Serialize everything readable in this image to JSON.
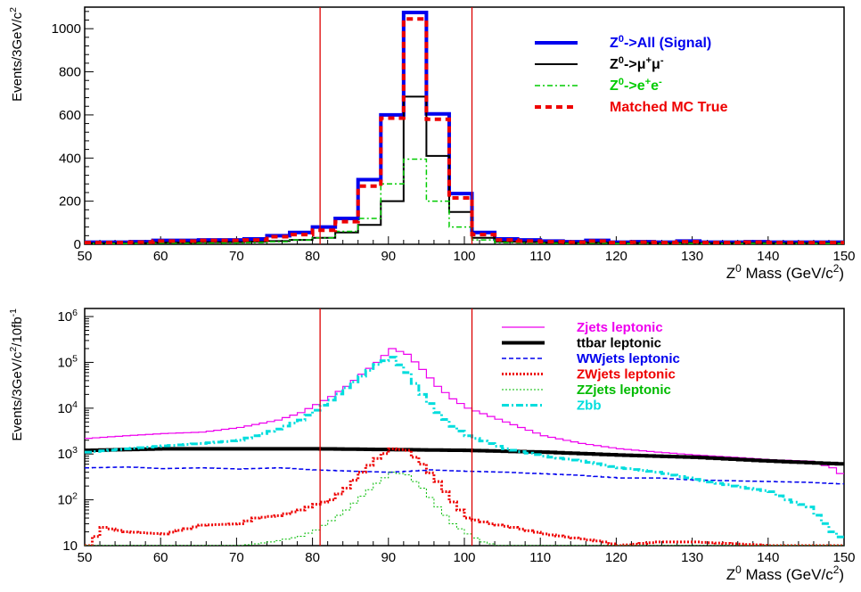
{
  "chart_data": [
    {
      "type": "line",
      "step": true,
      "ylabel_parts": [
        "Events/3GeV/c",
        "2"
      ],
      "xlabel_parts": [
        "Z",
        "0",
        " Mass (GeV/c",
        "2",
        ")"
      ],
      "xlim": [
        50,
        150
      ],
      "ylim": [
        0,
        1100
      ],
      "log_y": false,
      "xticks": [
        50,
        60,
        70,
        80,
        90,
        100,
        110,
        120,
        130,
        140,
        150
      ],
      "yticks": [
        0,
        200,
        400,
        600,
        800,
        1000
      ],
      "cut_lines_x": [
        81,
        101
      ],
      "legend_placement": "top-right",
      "bin_edges": [
        50,
        53,
        56,
        59,
        62,
        65,
        68,
        71,
        74,
        77,
        80,
        83,
        86,
        89,
        92,
        95,
        98,
        101,
        104,
        107,
        110,
        113,
        116,
        119,
        122,
        125,
        128,
        131,
        134,
        137,
        140,
        143,
        146,
        150
      ],
      "series": [
        {
          "legend": [
            "Z",
            "0",
            "->All  (Signal)"
          ],
          "color": "#0000ee",
          "width": 4,
          "dash": "",
          "values": [
            10,
            10,
            12,
            18,
            18,
            20,
            20,
            25,
            40,
            55,
            80,
            120,
            300,
            600,
            1075,
            605,
            235,
            55,
            25,
            20,
            15,
            12,
            18,
            10,
            12,
            10,
            15,
            10,
            10,
            12,
            10,
            10,
            10
          ]
        },
        {
          "legend": [
            "Z",
            "0",
            "->μ",
            "+",
            "μ",
            "-"
          ],
          "color": "#000000",
          "width": 2,
          "dash": "",
          "values": [
            5,
            5,
            5,
            8,
            8,
            10,
            10,
            12,
            15,
            20,
            30,
            55,
            90,
            200,
            685,
            410,
            150,
            30,
            12,
            10,
            8,
            6,
            8,
            5,
            6,
            5,
            7,
            5,
            5,
            6,
            5,
            5,
            5
          ]
        },
        {
          "legend": [
            "Z",
            "0",
            "->e",
            "+",
            "e",
            "-"
          ],
          "color": "#00cc00",
          "width": 1.5,
          "dash": "6,3,2,3",
          "values": [
            3,
            3,
            4,
            5,
            5,
            6,
            6,
            8,
            12,
            20,
            30,
            60,
            120,
            280,
            395,
            200,
            80,
            20,
            8,
            6,
            5,
            4,
            5,
            3,
            4,
            3,
            4,
            3,
            3,
            4,
            3,
            3,
            3
          ]
        },
        {
          "legend": [
            "Matched MC True"
          ],
          "color": "#ee0000",
          "width": 4,
          "dash": "7,5",
          "values": [
            8,
            8,
            10,
            15,
            15,
            18,
            18,
            20,
            35,
            45,
            65,
            105,
            270,
            585,
            1045,
            580,
            215,
            45,
            20,
            15,
            12,
            10,
            15,
            8,
            10,
            8,
            12,
            8,
            8,
            10,
            8,
            8,
            8
          ]
        }
      ]
    },
    {
      "type": "line",
      "step": true,
      "ylabel_parts": [
        "Events/3GeV/c",
        "2",
        "/10fb",
        "-1"
      ],
      "xlabel_parts": [
        "Z",
        "0",
        " Mass (GeV/c",
        "2",
        ")"
      ],
      "xlim": [
        50,
        150
      ],
      "ylim": [
        10,
        1500000
      ],
      "log_y": true,
      "xticks": [
        50,
        60,
        70,
        80,
        90,
        100,
        110,
        120,
        130,
        140,
        150
      ],
      "ytick_labels": [
        {
          "base": "10",
          "exp": "",
          "value": 10
        },
        {
          "base": "10",
          "exp": "2",
          "value": 100
        },
        {
          "base": "10",
          "exp": "3",
          "value": 1000
        },
        {
          "base": "10",
          "exp": "4",
          "value": 10000
        },
        {
          "base": "10",
          "exp": "5",
          "value": 100000
        },
        {
          "base": "10",
          "exp": "6",
          "value": 1000000
        }
      ],
      "cut_lines_x": [
        81,
        101
      ],
      "legend_placement": "top-right",
      "bin_width": 1,
      "series": [
        {
          "legend": "Zjets leptonic",
          "color": "#ee00ee",
          "width": 1.2,
          "dash": "",
          "points": [
            [
              50,
              2200
            ],
            [
              55,
              2500
            ],
            [
              60,
              2800
            ],
            [
              65,
              3000
            ],
            [
              70,
              3800
            ],
            [
              75,
              5500
            ],
            [
              78,
              8000
            ],
            [
              80,
              12000
            ],
            [
              82,
              18000
            ],
            [
              84,
              30000
            ],
            [
              86,
              55000
            ],
            [
              88,
              100000
            ],
            [
              90,
              200000
            ],
            [
              92,
              150000
            ],
            [
              94,
              70000
            ],
            [
              96,
              30000
            ],
            [
              98,
              16000
            ],
            [
              100,
              10000
            ],
            [
              105,
              5000
            ],
            [
              110,
              2500
            ],
            [
              115,
              1700
            ],
            [
              120,
              1300
            ],
            [
              125,
              1100
            ],
            [
              130,
              950
            ],
            [
              135,
              850
            ],
            [
              140,
              750
            ],
            [
              145,
              700
            ],
            [
              148,
              500
            ],
            [
              150,
              280
            ]
          ]
        },
        {
          "legend": "ttbar leptonic",
          "color": "#000000",
          "width": 4,
          "dash": "",
          "points": [
            [
              50,
              1200
            ],
            [
              60,
              1300
            ],
            [
              70,
              1300
            ],
            [
              80,
              1300
            ],
            [
              90,
              1250
            ],
            [
              100,
              1200
            ],
            [
              110,
              1100
            ],
            [
              120,
              950
            ],
            [
              130,
              850
            ],
            [
              140,
              700
            ],
            [
              150,
              600
            ]
          ]
        },
        {
          "legend": "WWjets leptonic",
          "color": "#0000ee",
          "width": 1.5,
          "dash": "5,3",
          "points": [
            [
              50,
              500
            ],
            [
              55,
              520
            ],
            [
              60,
              480
            ],
            [
              65,
              500
            ],
            [
              70,
              470
            ],
            [
              75,
              500
            ],
            [
              80,
              450
            ],
            [
              85,
              420
            ],
            [
              90,
              400
            ],
            [
              95,
              450
            ],
            [
              100,
              420
            ],
            [
              105,
              400
            ],
            [
              110,
              370
            ],
            [
              115,
              340
            ],
            [
              120,
              300
            ],
            [
              125,
              300
            ],
            [
              130,
              270
            ],
            [
              135,
              260
            ],
            [
              140,
              250
            ],
            [
              145,
              240
            ],
            [
              150,
              220
            ]
          ]
        },
        {
          "legend": "ZWjets leptonic",
          "color": "#ee0000",
          "width": 3,
          "dash": "2,2",
          "points": [
            [
              50,
              10
            ],
            [
              52,
              25
            ],
            [
              55,
              20
            ],
            [
              60,
              18
            ],
            [
              65,
              28
            ],
            [
              70,
              30
            ],
            [
              72,
              40
            ],
            [
              75,
              45
            ],
            [
              78,
              60
            ],
            [
              80,
              80
            ],
            [
              82,
              100
            ],
            [
              84,
              180
            ],
            [
              86,
              400
            ],
            [
              88,
              800
            ],
            [
              90,
              1300
            ],
            [
              92,
              1200
            ],
            [
              94,
              600
            ],
            [
              96,
              250
            ],
            [
              98,
              90
            ],
            [
              100,
              40
            ],
            [
              103,
              30
            ],
            [
              106,
              25
            ],
            [
              110,
              18
            ],
            [
              115,
              14
            ],
            [
              118,
              12
            ],
            [
              120,
              10
            ],
            [
              125,
              12
            ],
            [
              130,
              12
            ],
            [
              135,
              11
            ],
            [
              140,
              10
            ],
            [
              150,
              10
            ]
          ]
        },
        {
          "legend": "ZZjets leptonic",
          "color": "#00bb00",
          "width": 1,
          "dash": "2,2",
          "points": [
            [
              50,
              10
            ],
            [
              60,
              10
            ],
            [
              70,
              10
            ],
            [
              74,
              12
            ],
            [
              78,
              16
            ],
            [
              80,
              22
            ],
            [
              82,
              35
            ],
            [
              84,
              60
            ],
            [
              86,
              120
            ],
            [
              88,
              230
            ],
            [
              90,
              400
            ],
            [
              92,
              350
            ],
            [
              94,
              180
            ],
            [
              96,
              70
            ],
            [
              98,
              30
            ],
            [
              100,
              18
            ],
            [
              102,
              12
            ],
            [
              104,
              10
            ],
            [
              150,
              10
            ]
          ]
        },
        {
          "legend": "Zbb",
          "color": "#00dddd",
          "width": 3,
          "dash": "8,3,2,3",
          "points": [
            [
              50,
              1100
            ],
            [
              55,
              1300
            ],
            [
              60,
              1500
            ],
            [
              65,
              1700
            ],
            [
              70,
              2000
            ],
            [
              75,
              3500
            ],
            [
              78,
              5500
            ],
            [
              80,
              9000
            ],
            [
              82,
              15000
            ],
            [
              84,
              28000
            ],
            [
              86,
              50000
            ],
            [
              88,
              90000
            ],
            [
              90,
              130000
            ],
            [
              92,
              60000
            ],
            [
              94,
              20000
            ],
            [
              96,
              8000
            ],
            [
              98,
              4000
            ],
            [
              100,
              2500
            ],
            [
              105,
              1300
            ],
            [
              110,
              900
            ],
            [
              115,
              700
            ],
            [
              120,
              500
            ],
            [
              125,
              400
            ],
            [
              130,
              280
            ],
            [
              135,
              200
            ],
            [
              140,
              150
            ],
            [
              142,
              100
            ],
            [
              145,
              70
            ],
            [
              148,
              20
            ],
            [
              150,
              12
            ]
          ]
        }
      ]
    }
  ]
}
